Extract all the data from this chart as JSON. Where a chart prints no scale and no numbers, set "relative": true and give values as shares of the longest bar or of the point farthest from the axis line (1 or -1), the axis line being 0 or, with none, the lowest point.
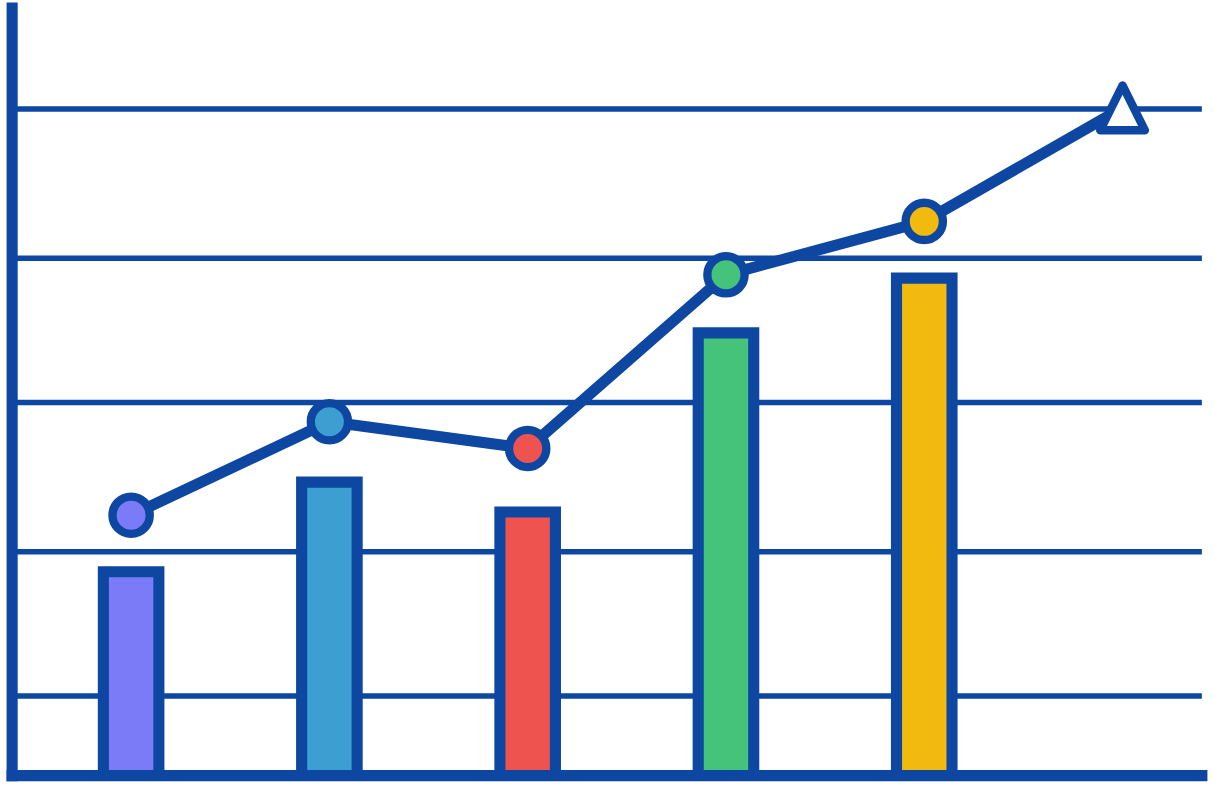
{
  "chart_data": [
    {
      "type": "bar",
      "relative": true,
      "categories": [
        null,
        null,
        null,
        null,
        null
      ],
      "colors": [
        "#7b7bf7",
        "#3d9fd1",
        "#ef5350",
        "#45c37a",
        "#f2b90f"
      ],
      "values": [
        0.41,
        0.59,
        0.53,
        0.89,
        1.0
      ],
      "ref_lines": [
        {
          "axis": "y",
          "value": 0.16,
          "color": "#0d47a1"
        },
        {
          "axis": "y",
          "value": 0.45,
          "color": "#0d47a1"
        },
        {
          "axis": "y",
          "value": 0.75,
          "color": "#0d47a1"
        },
        {
          "axis": "y",
          "value": 1.04,
          "color": "#0d47a1"
        },
        {
          "axis": "y",
          "value": 1.34,
          "color": "#0d47a1"
        }
      ]
    },
    {
      "type": "line",
      "relative": true,
      "marker": "circle",
      "categories": [
        null,
        null,
        null,
        null,
        null,
        null
      ],
      "series": [
        {
          "color": "#0d47a1",
          "colors": [
            "#7b7bf7",
            "#3d9fd1",
            "#ef5350",
            "#45c37a",
            "#f2b90f",
            "#ffffff"
          ],
          "values": [
            0.39,
            0.53,
            0.49,
            0.75,
            0.83,
            1.0
          ]
        }
      ]
    }
  ]
}
